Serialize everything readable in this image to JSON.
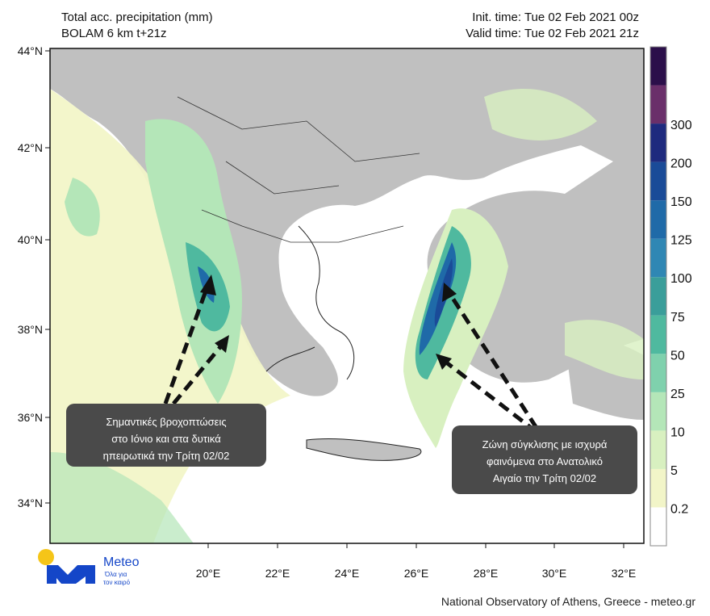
{
  "header": {
    "title": "Total acc. precipitation (mm)",
    "model": "BOLAM 6 km t+21z",
    "init_time": "Init. time: Tue 02 Feb 2021 00z",
    "valid_time": "Valid time: Tue 02 Feb 2021 21z"
  },
  "map": {
    "lat_labels": [
      "44°N",
      "42°N",
      "40°N",
      "38°N",
      "36°N",
      "34°N"
    ],
    "lon_labels": [
      "20°E",
      "22°E",
      "24°E",
      "26°E",
      "28°E",
      "30°E",
      "32°E"
    ]
  },
  "colorbar": {
    "labels": [
      "0.2",
      "5",
      "10",
      "25",
      "50",
      "75",
      "100",
      "125",
      "150",
      "200",
      "300"
    ],
    "colors": [
      "#ffffff",
      "#f2f5c8",
      "#d8f0c0",
      "#b4e6b8",
      "#7fd1ad",
      "#4fb99f",
      "#3a9e9a",
      "#2f87b4",
      "#1f6aa8",
      "#1a4b98",
      "#1e2a7e",
      "#6a2f6a",
      "#2b0f4a"
    ]
  },
  "annotations": [
    {
      "lines": [
        "Σημαντικές βροχοπτώσεις",
        "στο Ιόνιο και στα δυτικά",
        "ηπειρωτικά την Τρίτη 02/02"
      ]
    },
    {
      "lines": [
        "Ζώνη σύγκλισης με ισχυρά",
        "φαινόμενα στο Ανατολικό",
        "Αιγαίο την Τρίτη 02/02"
      ]
    }
  ],
  "logo": {
    "name": "Meteo",
    "tagline": [
      "Όλα για",
      "τον καιρό"
    ]
  },
  "footer": "National Observatory of Athens, Greece - meteo.gr"
}
